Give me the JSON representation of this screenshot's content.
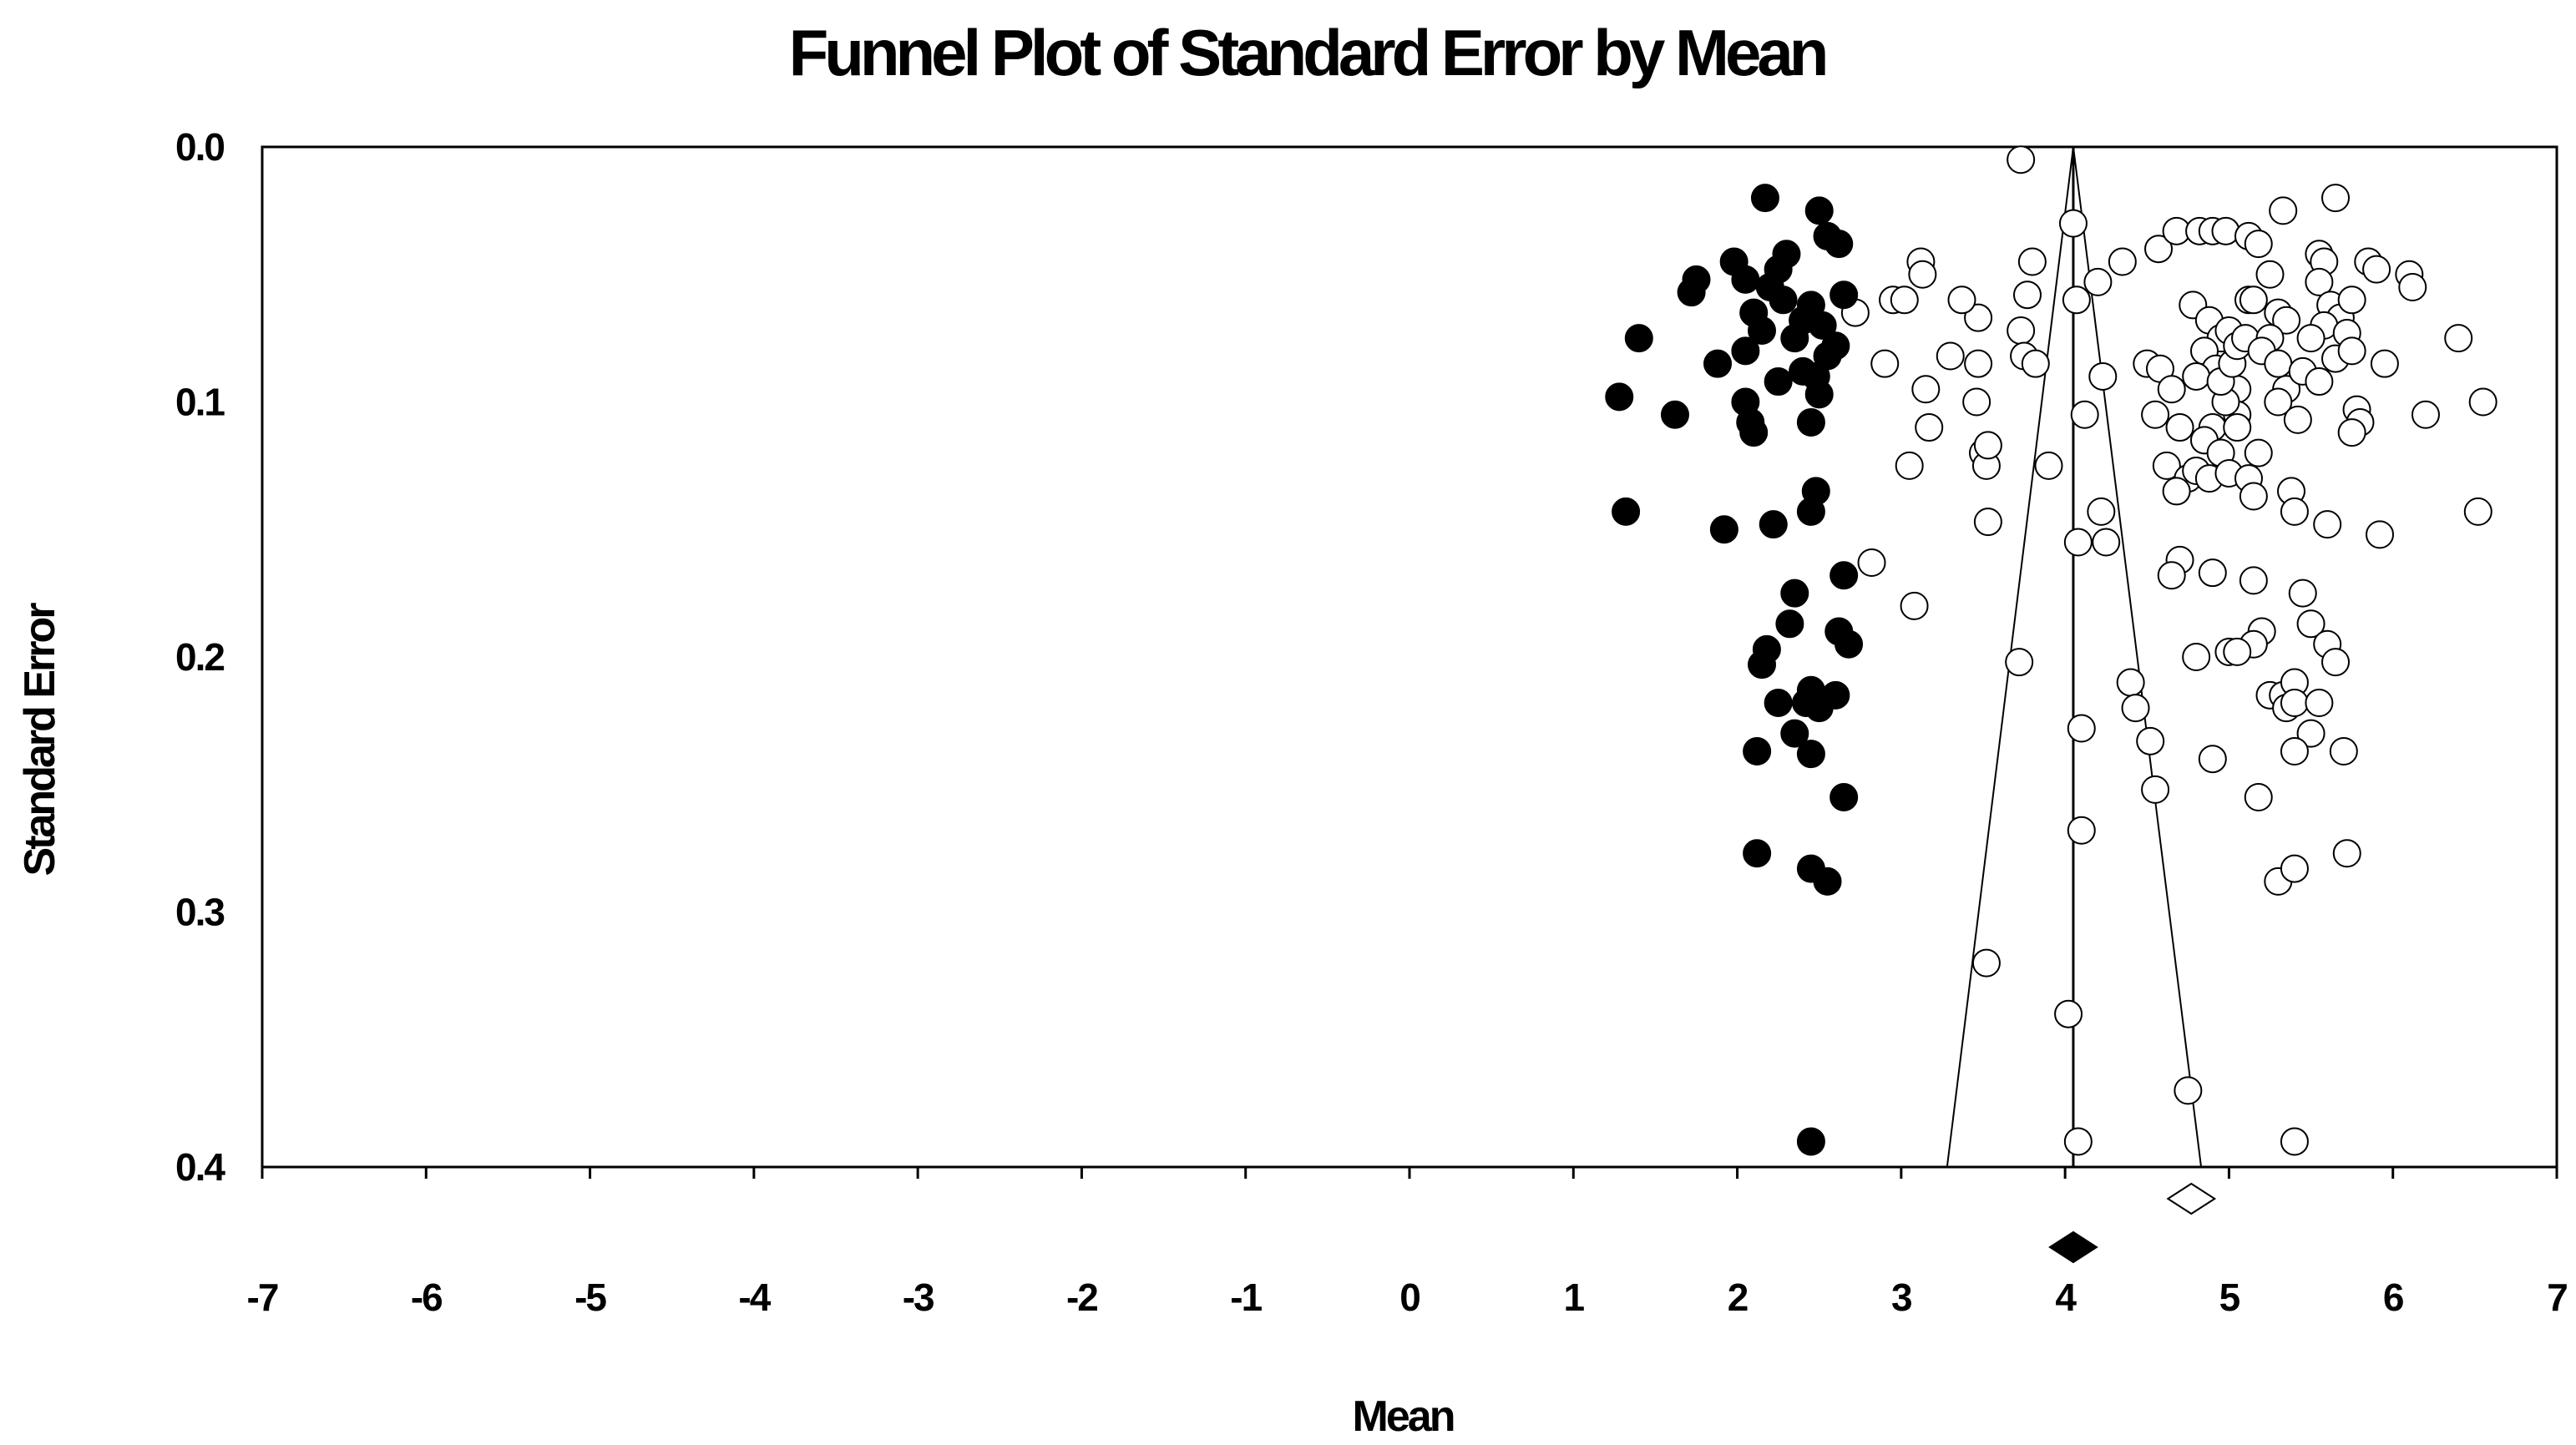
{
  "chart_data": {
    "type": "scatter",
    "title": "Funnel Plot of Standard Error by Mean",
    "xlabel": "Mean",
    "ylabel": "Standard Error",
    "xlim": [
      -7,
      7
    ],
    "ylim": [
      0.0,
      0.4
    ],
    "y_inverted": true,
    "grid": false,
    "legend": "none",
    "x_ticks": [
      "-7",
      "-6",
      "-5",
      "-4",
      "-3",
      "-2",
      "-1",
      "0",
      "1",
      "2",
      "3",
      "4",
      "5",
      "6",
      "7"
    ],
    "y_ticks": [
      "0.0",
      "0.1",
      "0.2",
      "0.3",
      "0.4"
    ],
    "funnel": {
      "center": 4.05,
      "apex_se": 0.0,
      "base_se": 0.4,
      "base_left": 3.28,
      "base_right": 4.83
    },
    "summary": {
      "observed": {
        "mean": 4.05,
        "marker": "filled-diamond"
      },
      "adjusted": {
        "mean": 4.77,
        "marker": "open-diamond"
      }
    },
    "series": [
      {
        "marker": "open-circle",
        "color": "#000000",
        "points": [
          [
            3.73,
            0.005
          ],
          [
            4.05,
            0.03
          ],
          [
            4.07,
            0.06
          ],
          [
            4.02,
            0.34
          ],
          [
            4.08,
            0.39
          ],
          [
            4.1,
            0.228
          ],
          [
            4.1,
            0.268
          ],
          [
            4.12,
            0.105
          ],
          [
            4.08,
            0.155
          ],
          [
            4.22,
            0.143
          ],
          [
            4.25,
            0.155
          ],
          [
            4.23,
            0.09
          ],
          [
            4.2,
            0.053
          ],
          [
            4.35,
            0.045
          ],
          [
            3.9,
            0.125
          ],
          [
            3.8,
            0.045
          ],
          [
            3.77,
            0.058
          ],
          [
            3.73,
            0.072
          ],
          [
            3.75,
            0.082
          ],
          [
            3.82,
            0.085
          ],
          [
            3.72,
            0.202
          ],
          [
            3.52,
            0.32
          ],
          [
            3.5,
            0.12
          ],
          [
            3.52,
            0.125
          ],
          [
            3.53,
            0.117
          ],
          [
            3.47,
            0.085
          ],
          [
            3.46,
            0.1
          ],
          [
            3.47,
            0.067
          ],
          [
            3.37,
            0.06
          ],
          [
            3.3,
            0.082
          ],
          [
            3.53,
            0.147
          ],
          [
            3.12,
            0.045
          ],
          [
            3.13,
            0.05
          ],
          [
            3.15,
            0.095
          ],
          [
            3.17,
            0.11
          ],
          [
            3.05,
            0.125
          ],
          [
            3.08,
            0.18
          ],
          [
            2.82,
            0.163
          ],
          [
            2.95,
            0.06
          ],
          [
            3.02,
            0.06
          ],
          [
            2.9,
            0.085
          ],
          [
            2.72,
            0.065
          ],
          [
            4.4,
            0.21
          ],
          [
            4.43,
            0.22
          ],
          [
            4.52,
            0.233
          ],
          [
            4.55,
            0.252
          ],
          [
            4.5,
            0.085
          ],
          [
            4.58,
            0.087
          ],
          [
            4.65,
            0.095
          ],
          [
            4.55,
            0.105
          ],
          [
            4.7,
            0.11
          ],
          [
            4.62,
            0.125
          ],
          [
            4.75,
            0.13
          ],
          [
            4.68,
            0.135
          ],
          [
            4.57,
            0.04
          ],
          [
            4.68,
            0.033
          ],
          [
            4.82,
            0.033
          ],
          [
            4.9,
            0.033
          ],
          [
            4.98,
            0.033
          ],
          [
            4.78,
            0.062
          ],
          [
            4.88,
            0.068
          ],
          [
            4.95,
            0.075
          ],
          [
            5.0,
            0.072
          ],
          [
            4.85,
            0.08
          ],
          [
            4.92,
            0.087
          ],
          [
            4.8,
            0.09
          ],
          [
            5.05,
            0.095
          ],
          [
            4.9,
            0.11
          ],
          [
            4.85,
            0.115
          ],
          [
            4.95,
            0.12
          ],
          [
            4.8,
            0.127
          ],
          [
            4.88,
            0.13
          ],
          [
            5.0,
            0.128
          ],
          [
            5.05,
            0.105
          ],
          [
            5.05,
            0.11
          ],
          [
            4.98,
            0.1
          ],
          [
            4.95,
            0.092
          ],
          [
            5.02,
            0.085
          ],
          [
            5.05,
            0.078
          ],
          [
            5.1,
            0.075
          ],
          [
            5.12,
            0.06
          ],
          [
            5.15,
            0.06
          ],
          [
            5.12,
            0.035
          ],
          [
            5.18,
            0.038
          ],
          [
            5.33,
            0.025
          ],
          [
            5.25,
            0.05
          ],
          [
            5.3,
            0.065
          ],
          [
            5.35,
            0.068
          ],
          [
            5.25,
            0.075
          ],
          [
            5.2,
            0.08
          ],
          [
            5.3,
            0.085
          ],
          [
            5.35,
            0.095
          ],
          [
            5.3,
            0.1
          ],
          [
            5.42,
            0.107
          ],
          [
            5.18,
            0.12
          ],
          [
            5.12,
            0.13
          ],
          [
            5.15,
            0.137
          ],
          [
            5.38,
            0.135
          ],
          [
            5.4,
            0.143
          ],
          [
            4.7,
            0.162
          ],
          [
            4.65,
            0.168
          ],
          [
            4.9,
            0.167
          ],
          [
            5.15,
            0.17
          ],
          [
            5.2,
            0.19
          ],
          [
            5.15,
            0.195
          ],
          [
            5.0,
            0.198
          ],
          [
            5.05,
            0.198
          ],
          [
            4.8,
            0.2
          ],
          [
            4.9,
            0.24
          ],
          [
            5.18,
            0.255
          ],
          [
            5.25,
            0.215
          ],
          [
            5.33,
            0.215
          ],
          [
            5.4,
            0.21
          ],
          [
            5.35,
            0.22
          ],
          [
            5.4,
            0.218
          ],
          [
            5.5,
            0.23
          ],
          [
            5.4,
            0.237
          ],
          [
            5.3,
            0.288
          ],
          [
            5.4,
            0.283
          ],
          [
            5.4,
            0.39
          ],
          [
            4.75,
            0.37
          ],
          [
            5.5,
            0.187
          ],
          [
            5.45,
            0.175
          ],
          [
            5.6,
            0.195
          ],
          [
            5.65,
            0.202
          ],
          [
            5.55,
            0.218
          ],
          [
            5.7,
            0.237
          ],
          [
            5.72,
            0.277
          ],
          [
            5.55,
            0.042
          ],
          [
            5.58,
            0.045
          ],
          [
            5.65,
            0.02
          ],
          [
            5.55,
            0.053
          ],
          [
            5.62,
            0.062
          ],
          [
            5.68,
            0.067
          ],
          [
            5.75,
            0.06
          ],
          [
            5.58,
            0.07
          ],
          [
            5.72,
            0.073
          ],
          [
            5.5,
            0.075
          ],
          [
            5.45,
            0.088
          ],
          [
            5.55,
            0.092
          ],
          [
            5.65,
            0.083
          ],
          [
            5.75,
            0.08
          ],
          [
            5.78,
            0.103
          ],
          [
            5.8,
            0.108
          ],
          [
            5.75,
            0.112
          ],
          [
            5.6,
            0.148
          ],
          [
            5.85,
            0.045
          ],
          [
            5.9,
            0.048
          ],
          [
            6.1,
            0.05
          ],
          [
            6.12,
            0.055
          ],
          [
            5.95,
            0.085
          ],
          [
            6.2,
            0.105
          ],
          [
            5.92,
            0.152
          ],
          [
            6.4,
            0.075
          ],
          [
            6.55,
            0.1
          ],
          [
            6.52,
            0.143
          ]
        ]
      },
      {
        "marker": "filled-circle",
        "color": "#000000",
        "points": [
          [
            2.17,
            0.02
          ],
          [
            2.5,
            0.025
          ],
          [
            2.55,
            0.035
          ],
          [
            2.62,
            0.038
          ],
          [
            2.3,
            0.042
          ],
          [
            1.98,
            0.045
          ],
          [
            2.25,
            0.048
          ],
          [
            2.05,
            0.052
          ],
          [
            1.75,
            0.052
          ],
          [
            2.2,
            0.055
          ],
          [
            1.72,
            0.057
          ],
          [
            2.28,
            0.06
          ],
          [
            2.65,
            0.058
          ],
          [
            2.45,
            0.062
          ],
          [
            2.1,
            0.065
          ],
          [
            2.4,
            0.068
          ],
          [
            2.52,
            0.07
          ],
          [
            2.15,
            0.072
          ],
          [
            2.35,
            0.075
          ],
          [
            2.6,
            0.078
          ],
          [
            1.4,
            0.075
          ],
          [
            2.05,
            0.08
          ],
          [
            2.55,
            0.082
          ],
          [
            1.88,
            0.085
          ],
          [
            2.4,
            0.088
          ],
          [
            2.48,
            0.09
          ],
          [
            2.25,
            0.092
          ],
          [
            2.5,
            0.097
          ],
          [
            1.28,
            0.098
          ],
          [
            2.05,
            0.1
          ],
          [
            1.62,
            0.105
          ],
          [
            2.08,
            0.108
          ],
          [
            2.1,
            0.112
          ],
          [
            2.45,
            0.108
          ],
          [
            2.48,
            0.135
          ],
          [
            2.45,
            0.143
          ],
          [
            1.32,
            0.143
          ],
          [
            1.92,
            0.15
          ],
          [
            2.22,
            0.148
          ],
          [
            2.65,
            0.168
          ],
          [
            2.35,
            0.175
          ],
          [
            2.32,
            0.187
          ],
          [
            2.62,
            0.19
          ],
          [
            2.68,
            0.195
          ],
          [
            2.18,
            0.197
          ],
          [
            2.15,
            0.203
          ],
          [
            2.45,
            0.213
          ],
          [
            2.42,
            0.218
          ],
          [
            2.6,
            0.215
          ],
          [
            2.5,
            0.22
          ],
          [
            2.25,
            0.218
          ],
          [
            2.35,
            0.23
          ],
          [
            2.12,
            0.237
          ],
          [
            2.45,
            0.238
          ],
          [
            2.65,
            0.255
          ],
          [
            2.12,
            0.277
          ],
          [
            2.45,
            0.283
          ],
          [
            2.55,
            0.288
          ],
          [
            2.45,
            0.39
          ]
        ]
      }
    ]
  }
}
